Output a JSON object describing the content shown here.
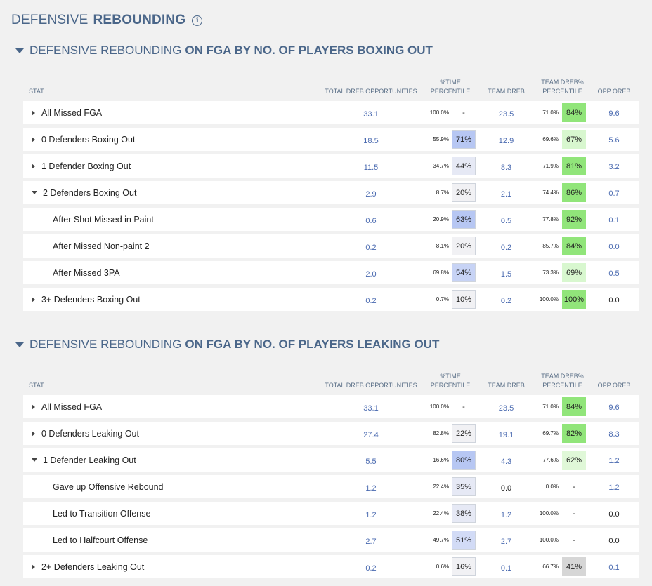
{
  "page": {
    "title_light": "DEFENSIVE",
    "title_bold": "REBOUNDING",
    "info_icon": "info-icon"
  },
  "columns": {
    "stat": "STAT",
    "total": "TOTAL DREB OPPORTUNITIES",
    "time_l1": "%TIME",
    "time_l2": "PERCENTILE",
    "team_dreb": "TEAM DREB",
    "dreb_pct_l1": "TEAM DREB%",
    "dreb_pct_l2": "PERCENTILE",
    "opp_oreb": "OPP OREB"
  },
  "sections": [
    {
      "title_light": "DEFENSIVE REBOUNDING",
      "title_bold": "ON FGA BY NO. OF PLAYERS BOXING OUT",
      "rows": [
        {
          "label": "All Missed FGA",
          "toggle": "right",
          "sub": false,
          "total": "33.1",
          "time": "100.0%",
          "time_pct": "-",
          "time_pct_color": "",
          "team_dreb": "23.5",
          "dreb_pct": "71.0%",
          "dreb_pctile": "84%",
          "dreb_color": "#91e57a",
          "opp_oreb": "9.6",
          "opp_color": "blue"
        },
        {
          "label": "0 Defenders Boxing Out",
          "toggle": "right",
          "sub": false,
          "total": "18.5",
          "time": "55.9%",
          "time_pct": "71%",
          "time_pct_color": "#b7c7f3",
          "team_dreb": "12.9",
          "dreb_pct": "69.6%",
          "dreb_pctile": "67%",
          "dreb_color": "#d8f7cf",
          "opp_oreb": "5.6",
          "opp_color": "blue"
        },
        {
          "label": "1 Defender Boxing Out",
          "toggle": "right",
          "sub": false,
          "total": "11.5",
          "time": "34.7%",
          "time_pct": "44%",
          "time_pct_color": "#e6e9f5",
          "team_dreb": "8.3",
          "dreb_pct": "71.9%",
          "dreb_pctile": "81%",
          "dreb_color": "#91e57a",
          "opp_oreb": "3.2",
          "opp_color": "blue"
        },
        {
          "label": "2 Defenders Boxing Out",
          "toggle": "down",
          "sub": false,
          "total": "2.9",
          "time": "8.7%",
          "time_pct": "20%",
          "time_pct_color": "#f1f1f4",
          "team_dreb": "2.1",
          "dreb_pct": "74.4%",
          "dreb_pctile": "86%",
          "dreb_color": "#91e57a",
          "opp_oreb": "0.7",
          "opp_color": "blue"
        },
        {
          "label": "After Shot Missed in Paint",
          "toggle": "",
          "sub": true,
          "total": "0.6",
          "time": "20.9%",
          "time_pct": "63%",
          "time_pct_color": "#b7c7f3",
          "team_dreb": "0.5",
          "dreb_pct": "77.8%",
          "dreb_pctile": "92%",
          "dreb_color": "#91e57a",
          "opp_oreb": "0.1",
          "opp_color": "blue"
        },
        {
          "label": "After Missed Non-paint 2",
          "toggle": "",
          "sub": true,
          "total": "0.2",
          "time": "8.1%",
          "time_pct": "20%",
          "time_pct_color": "#f1f1f4",
          "team_dreb": "0.2",
          "dreb_pct": "85.7%",
          "dreb_pctile": "84%",
          "dreb_color": "#91e57a",
          "opp_oreb": "0.0",
          "opp_color": "blue"
        },
        {
          "label": "After Missed 3PA",
          "toggle": "",
          "sub": true,
          "total": "2.0",
          "time": "69.8%",
          "time_pct": "54%",
          "time_pct_color": "#c7d3f5",
          "team_dreb": "1.5",
          "dreb_pct": "73.3%",
          "dreb_pctile": "69%",
          "dreb_color": "#d8f7cf",
          "opp_oreb": "0.5",
          "opp_color": "blue"
        },
        {
          "label": "3+ Defenders Boxing Out",
          "toggle": "right",
          "sub": false,
          "total": "0.2",
          "time": "0.7%",
          "time_pct": "10%",
          "time_pct_color": "#f1f1f4",
          "team_dreb": "0.2",
          "dreb_pct": "100.0%",
          "dreb_pctile": "100%",
          "dreb_color": "#91e57a",
          "opp_oreb": "0.0",
          "opp_color": "dark"
        }
      ]
    },
    {
      "title_light": "DEFENSIVE REBOUNDING",
      "title_bold": "ON FGA BY NO. OF PLAYERS LEAKING OUT",
      "rows": [
        {
          "label": "All Missed FGA",
          "toggle": "right",
          "sub": false,
          "total": "33.1",
          "time": "100.0%",
          "time_pct": "-",
          "time_pct_color": "",
          "team_dreb": "23.5",
          "dreb_pct": "71.0%",
          "dreb_pctile": "84%",
          "dreb_color": "#91e57a",
          "opp_oreb": "9.6",
          "opp_color": "blue"
        },
        {
          "label": "0 Defenders Leaking Out",
          "toggle": "right",
          "sub": false,
          "total": "27.4",
          "time": "82.8%",
          "time_pct": "22%",
          "time_pct_color": "#f1f1f4",
          "team_dreb": "19.1",
          "dreb_pct": "69.7%",
          "dreb_pctile": "82%",
          "dreb_color": "#91e57a",
          "opp_oreb": "8.3",
          "opp_color": "blue"
        },
        {
          "label": "1 Defender Leaking Out",
          "toggle": "down",
          "sub": false,
          "total": "5.5",
          "time": "16.6%",
          "time_pct": "80%",
          "time_pct_color": "#b7c7f3",
          "team_dreb": "4.3",
          "dreb_pct": "77.6%",
          "dreb_pctile": "62%",
          "dreb_color": "#e0f8d8",
          "opp_oreb": "1.2",
          "opp_color": "blue"
        },
        {
          "label": "Gave up Offensive Rebound",
          "toggle": "",
          "sub": true,
          "total": "1.2",
          "time": "22.4%",
          "time_pct": "35%",
          "time_pct_color": "#e6e9f5",
          "team_dreb": "0.0",
          "dreb_pct": "0.0%",
          "dreb_pctile": "-",
          "dreb_color": "",
          "opp_oreb": "1.2",
          "opp_color": "blue",
          "team_dreb_color": "dark"
        },
        {
          "label": "Led to Transition Offense",
          "toggle": "",
          "sub": true,
          "total": "1.2",
          "time": "22.4%",
          "time_pct": "38%",
          "time_pct_color": "#e6e9f5",
          "team_dreb": "1.2",
          "dreb_pct": "100.0%",
          "dreb_pctile": "-",
          "dreb_color": "",
          "opp_oreb": "0.0",
          "opp_color": "dark"
        },
        {
          "label": "Led to Halfcourt Offense",
          "toggle": "",
          "sub": true,
          "total": "2.7",
          "time": "49.7%",
          "time_pct": "51%",
          "time_pct_color": "#d2dbf6",
          "team_dreb": "2.7",
          "dreb_pct": "100.0%",
          "dreb_pctile": "-",
          "dreb_color": "",
          "opp_oreb": "0.0",
          "opp_color": "dark"
        },
        {
          "label": "2+ Defenders Leaking Out",
          "toggle": "right",
          "sub": false,
          "total": "0.2",
          "time": "0.6%",
          "time_pct": "16%",
          "time_pct_color": "#f1f1f4",
          "team_dreb": "0.1",
          "dreb_pct": "66.7%",
          "dreb_pctile": "41%",
          "dreb_color": "#d6d6d6",
          "opp_oreb": "0.1",
          "opp_color": "blue"
        }
      ]
    }
  ]
}
